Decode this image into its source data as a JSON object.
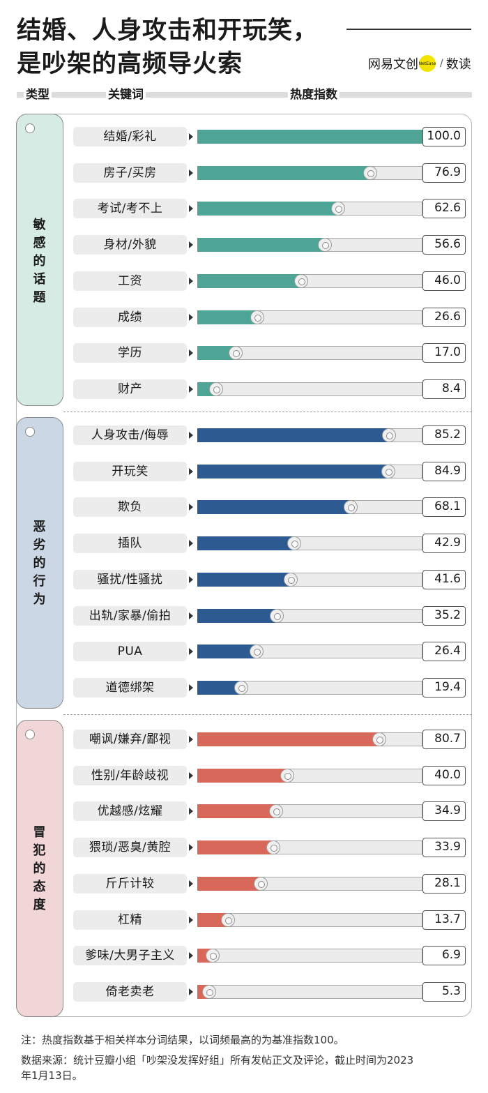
{
  "title_lines": [
    "结婚、人身攻击和开玩笑，",
    "是吵架的高频导火索"
  ],
  "logo": {
    "part1": "网易文创",
    "dot_text": "NetEase",
    "slash": "/",
    "part2": "数读"
  },
  "headers": {
    "type": "类型",
    "keyword": "关键词",
    "index": "热度指数"
  },
  "colors": {
    "sensitive": "#4ea596",
    "behavior": "#2e5a92",
    "attitude": "#d8695a",
    "cat_sensitive_bg": "#d5ebe3",
    "cat_behavior_bg": "#cbd7e4",
    "cat_attitude_bg": "#f1d6d7"
  },
  "chart_data": {
    "type": "bar",
    "title": "结婚、人身攻击和开玩笑，是吵架的高频导火索",
    "xlim": [
      0,
      100
    ],
    "groups": [
      {
        "name": "敏感的话题",
        "color_key": "sensitive",
        "categories": [
          "结婚/彩礼",
          "房子/买房",
          "考试/考不上",
          "身材/外貌",
          "工资",
          "成绩",
          "学历",
          "财产"
        ],
        "values": [
          100.0,
          76.9,
          62.6,
          56.6,
          46.0,
          26.6,
          17.0,
          8.4
        ]
      },
      {
        "name": "恶劣的行为",
        "color_key": "behavior",
        "categories": [
          "人身攻击/侮辱",
          "开玩笑",
          "欺负",
          "插队",
          "骚扰/性骚扰",
          "出轨/家暴/偷拍",
          "PUA",
          "道德绑架"
        ],
        "values": [
          85.2,
          84.9,
          68.1,
          42.9,
          41.6,
          35.2,
          26.4,
          19.4
        ]
      },
      {
        "name": "冒犯的态度",
        "color_key": "attitude",
        "categories": [
          "嘲讽/嫌弃/鄙视",
          "性别/年龄歧视",
          "优越感/炫耀",
          "猥琐/恶臭/黄腔",
          "斤斤计较",
          "杠精",
          "爹味/大男子主义",
          "倚老卖老"
        ],
        "values": [
          80.7,
          40.0,
          34.9,
          33.9,
          28.1,
          13.7,
          6.9,
          5.3
        ]
      }
    ]
  },
  "notes": {
    "note1": "注：热度指数基于相关样本分词结果，以词频最高的为基准指数100。",
    "source_line1": "数据来源：统计豆瓣小组「吵架没发挥好组」所有发帖正文及评论，截止时间为2023",
    "source_line2": "年1月13日。"
  }
}
